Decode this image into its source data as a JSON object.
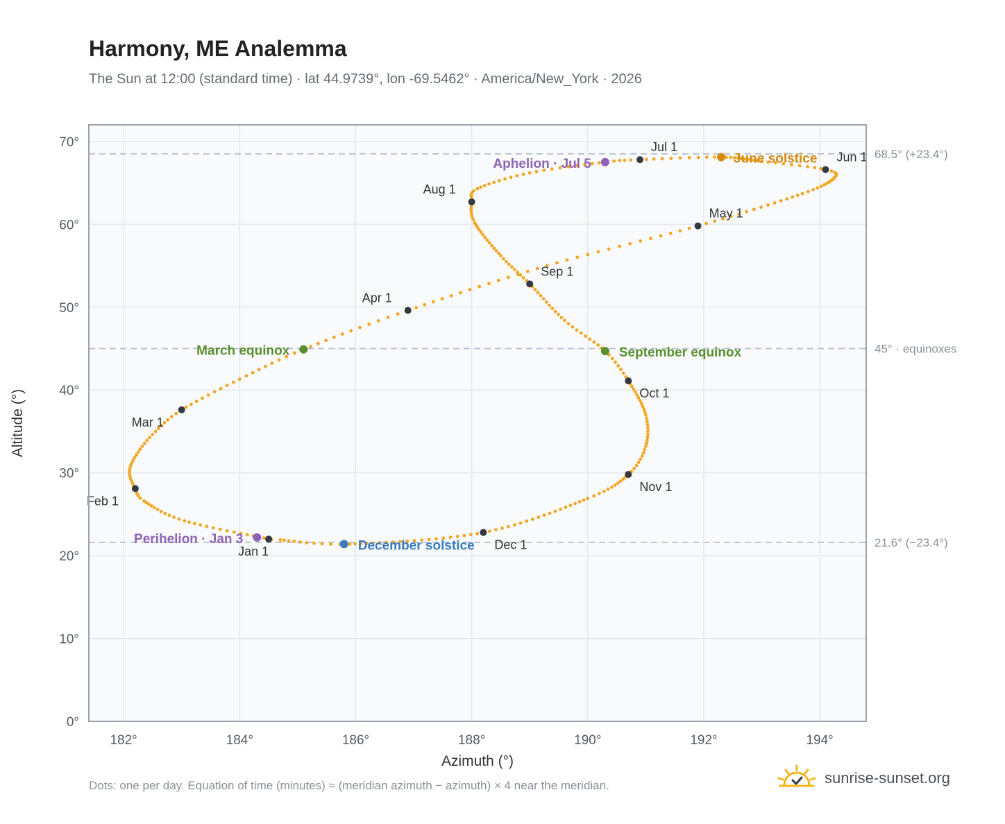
{
  "header": {
    "title": "Harmony, ME Analemma",
    "subtitle": "The Sun at 12:00 (standard time) · lat 44.9739°, lon -69.5462° · America/New_York · 2026"
  },
  "footer": {
    "note": "Dots: one per day. Equation of time (minutes) ≈ (meridian azimuth − azimuth) × 4 near the meridian.",
    "brand": "sunrise-sunset.org"
  },
  "chart_data": {
    "type": "scatter",
    "xlabel": "Azimuth (°)",
    "ylabel": "Altitude (°)",
    "xlim": [
      181.4,
      194.8
    ],
    "ylim": [
      0,
      72
    ],
    "x_ticks": [
      "182°",
      "184°",
      "186°",
      "188°",
      "190°",
      "192°",
      "194°"
    ],
    "x_tick_values": [
      182,
      184,
      186,
      188,
      190,
      192,
      194
    ],
    "y_ticks": [
      "0°",
      "10°",
      "20°",
      "30°",
      "40°",
      "50°",
      "60°",
      "70°"
    ],
    "y_tick_values": [
      0,
      10,
      20,
      30,
      40,
      50,
      60,
      70
    ],
    "grid": true,
    "colors": {
      "path": "#f2a623",
      "month_marker": "#343a40",
      "solstice_june": "#d68910",
      "solstice_december": "#3a7bbf",
      "equinox": "#5a8f2e",
      "apsis": "#8e63b5",
      "reference_line": "#b8c0cb",
      "plot_bg": "#f8fafc",
      "frame": "#9aa3ae"
    },
    "reference_lines": [
      {
        "y": 68.5,
        "label": "68.5° (+23.4°)"
      },
      {
        "y": 45,
        "label": "45° · equinoxes"
      },
      {
        "y": 21.6,
        "label": "21.6° (−23.4°)"
      }
    ],
    "month_markers": [
      {
        "label": "Jan 1",
        "x": 184.5,
        "y": 22.0
      },
      {
        "label": "Feb 1",
        "x": 182.2,
        "y": 28.1
      },
      {
        "label": "Mar 1",
        "x": 183.0,
        "y": 37.6
      },
      {
        "label": "Apr 1",
        "x": 186.9,
        "y": 49.6
      },
      {
        "label": "May 1",
        "x": 191.9,
        "y": 59.8
      },
      {
        "label": "Jun 1",
        "x": 194.1,
        "y": 66.6
      },
      {
        "label": "Jul 1",
        "x": 190.9,
        "y": 67.8
      },
      {
        "label": "Aug 1",
        "x": 188.0,
        "y": 62.7
      },
      {
        "label": "Sep 1",
        "x": 189.0,
        "y": 52.8
      },
      {
        "label": "Oct 1",
        "x": 190.7,
        "y": 41.1
      },
      {
        "label": "Nov 1",
        "x": 190.7,
        "y": 29.8
      },
      {
        "label": "Dec 1",
        "x": 188.2,
        "y": 22.8
      }
    ],
    "events": [
      {
        "label": "June solstice",
        "x": 192.3,
        "y": 68.1,
        "color": "#d68910"
      },
      {
        "label": "December solstice",
        "x": 185.8,
        "y": 21.4,
        "color": "#3a7bbf"
      },
      {
        "label": "March equinox",
        "x": 185.1,
        "y": 44.9,
        "color": "#5a8f2e"
      },
      {
        "label": "September equinox",
        "x": 190.3,
        "y": 44.7,
        "color": "#5a8f2e"
      },
      {
        "label": "Aphelion · Jul 5",
        "x": 190.3,
        "y": 67.5,
        "color": "#8e63b5"
      },
      {
        "label": "Perihelion · Jan 3",
        "x": 184.3,
        "y": 22.2,
        "color": "#8e63b5"
      }
    ],
    "path_anchors": [
      {
        "doy": 0,
        "x": 184.55,
        "y": 21.95
      },
      {
        "doy": 15,
        "x": 183.05,
        "y": 24.2
      },
      {
        "doy": 26,
        "x": 182.35,
        "y": 26.6
      },
      {
        "doy": 31,
        "x": 182.2,
        "y": 28.1
      },
      {
        "doy": 38,
        "x": 182.1,
        "y": 30.2
      },
      {
        "doy": 45,
        "x": 182.25,
        "y": 32.5
      },
      {
        "doy": 52,
        "x": 182.55,
        "y": 35.0
      },
      {
        "doy": 59,
        "x": 183.0,
        "y": 37.6
      },
      {
        "doy": 69,
        "x": 184.0,
        "y": 41.3
      },
      {
        "doy": 78,
        "x": 185.1,
        "y": 44.9
      },
      {
        "doy": 90,
        "x": 186.9,
        "y": 49.6
      },
      {
        "doy": 105,
        "x": 189.3,
        "y": 55.0
      },
      {
        "doy": 120,
        "x": 191.9,
        "y": 59.8
      },
      {
        "doy": 135,
        "x": 193.7,
        "y": 63.7
      },
      {
        "doy": 146,
        "x": 194.25,
        "y": 65.6
      },
      {
        "doy": 151,
        "x": 194.1,
        "y": 66.6
      },
      {
        "doy": 160,
        "x": 193.0,
        "y": 67.6
      },
      {
        "doy": 171,
        "x": 192.3,
        "y": 68.1
      },
      {
        "doy": 181,
        "x": 190.9,
        "y": 67.8
      },
      {
        "doy": 186,
        "x": 190.3,
        "y": 67.5
      },
      {
        "doy": 196,
        "x": 189.0,
        "y": 66.2
      },
      {
        "doy": 206,
        "x": 188.1,
        "y": 64.3
      },
      {
        "doy": 212,
        "x": 188.0,
        "y": 62.7
      },
      {
        "doy": 220,
        "x": 188.05,
        "y": 60.2
      },
      {
        "doy": 233,
        "x": 188.5,
        "y": 56.2
      },
      {
        "doy": 243,
        "x": 189.0,
        "y": 52.8
      },
      {
        "doy": 255,
        "x": 189.6,
        "y": 48.4
      },
      {
        "doy": 265,
        "x": 190.3,
        "y": 44.7
      },
      {
        "doy": 273,
        "x": 190.7,
        "y": 41.1
      },
      {
        "doy": 285,
        "x": 191.0,
        "y": 37.0
      },
      {
        "doy": 295,
        "x": 191.0,
        "y": 33.2
      },
      {
        "doy": 304,
        "x": 190.7,
        "y": 29.8
      },
      {
        "doy": 315,
        "x": 190.0,
        "y": 26.9
      },
      {
        "doy": 334,
        "x": 188.2,
        "y": 22.8
      },
      {
        "doy": 354,
        "x": 185.9,
        "y": 21.4
      },
      {
        "doy": 364,
        "x": 184.7,
        "y": 21.9
      }
    ]
  }
}
